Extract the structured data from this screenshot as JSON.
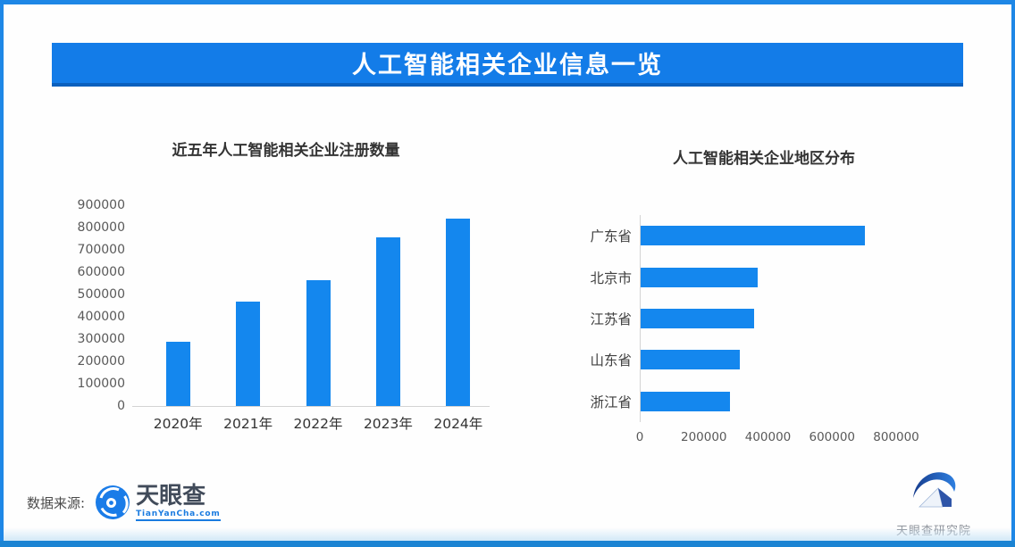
{
  "page": {
    "banner_title": "人工智能相关企业信息一览",
    "footer": {
      "source_label": "数据来源:",
      "tyc_logo_name": "天眼查",
      "tyc_logo_sub": "TianYanCha.com",
      "research_logo_text": "天眼查研究院"
    },
    "colors": {
      "frame_blue": "#1e87e6",
      "banner_blue": "#137ce8",
      "banner_edge_blue": "#0b60bd",
      "bar_blue": "#1487ee",
      "axis_gray": "#595959",
      "title_dark": "#333333",
      "bottom_strip_blue": "#1b84d3"
    }
  },
  "chart_data": [
    {
      "type": "bar",
      "orientation": "vertical",
      "title": "近五年人工智能相关企业注册数量",
      "categories": [
        "2020年",
        "2021年",
        "2022年",
        "2023年",
        "2024年"
      ],
      "values": [
        290000,
        470000,
        565000,
        755000,
        840000
      ],
      "ylim": [
        0,
        900000
      ],
      "ytick_step": 100000,
      "xlabel": "",
      "ylabel": "",
      "grid": false,
      "legend": "none"
    },
    {
      "type": "bar",
      "orientation": "horizontal",
      "title": "人工智能相关企业地区分布",
      "categories": [
        "广东省",
        "北京市",
        "江苏省",
        "山东省",
        "浙江省"
      ],
      "values": [
        700000,
        365000,
        355000,
        310000,
        280000
      ],
      "xlim": [
        0,
        800000
      ],
      "xtick_step": 200000,
      "xlabel": "",
      "ylabel": "",
      "grid": false,
      "legend": "none"
    }
  ]
}
